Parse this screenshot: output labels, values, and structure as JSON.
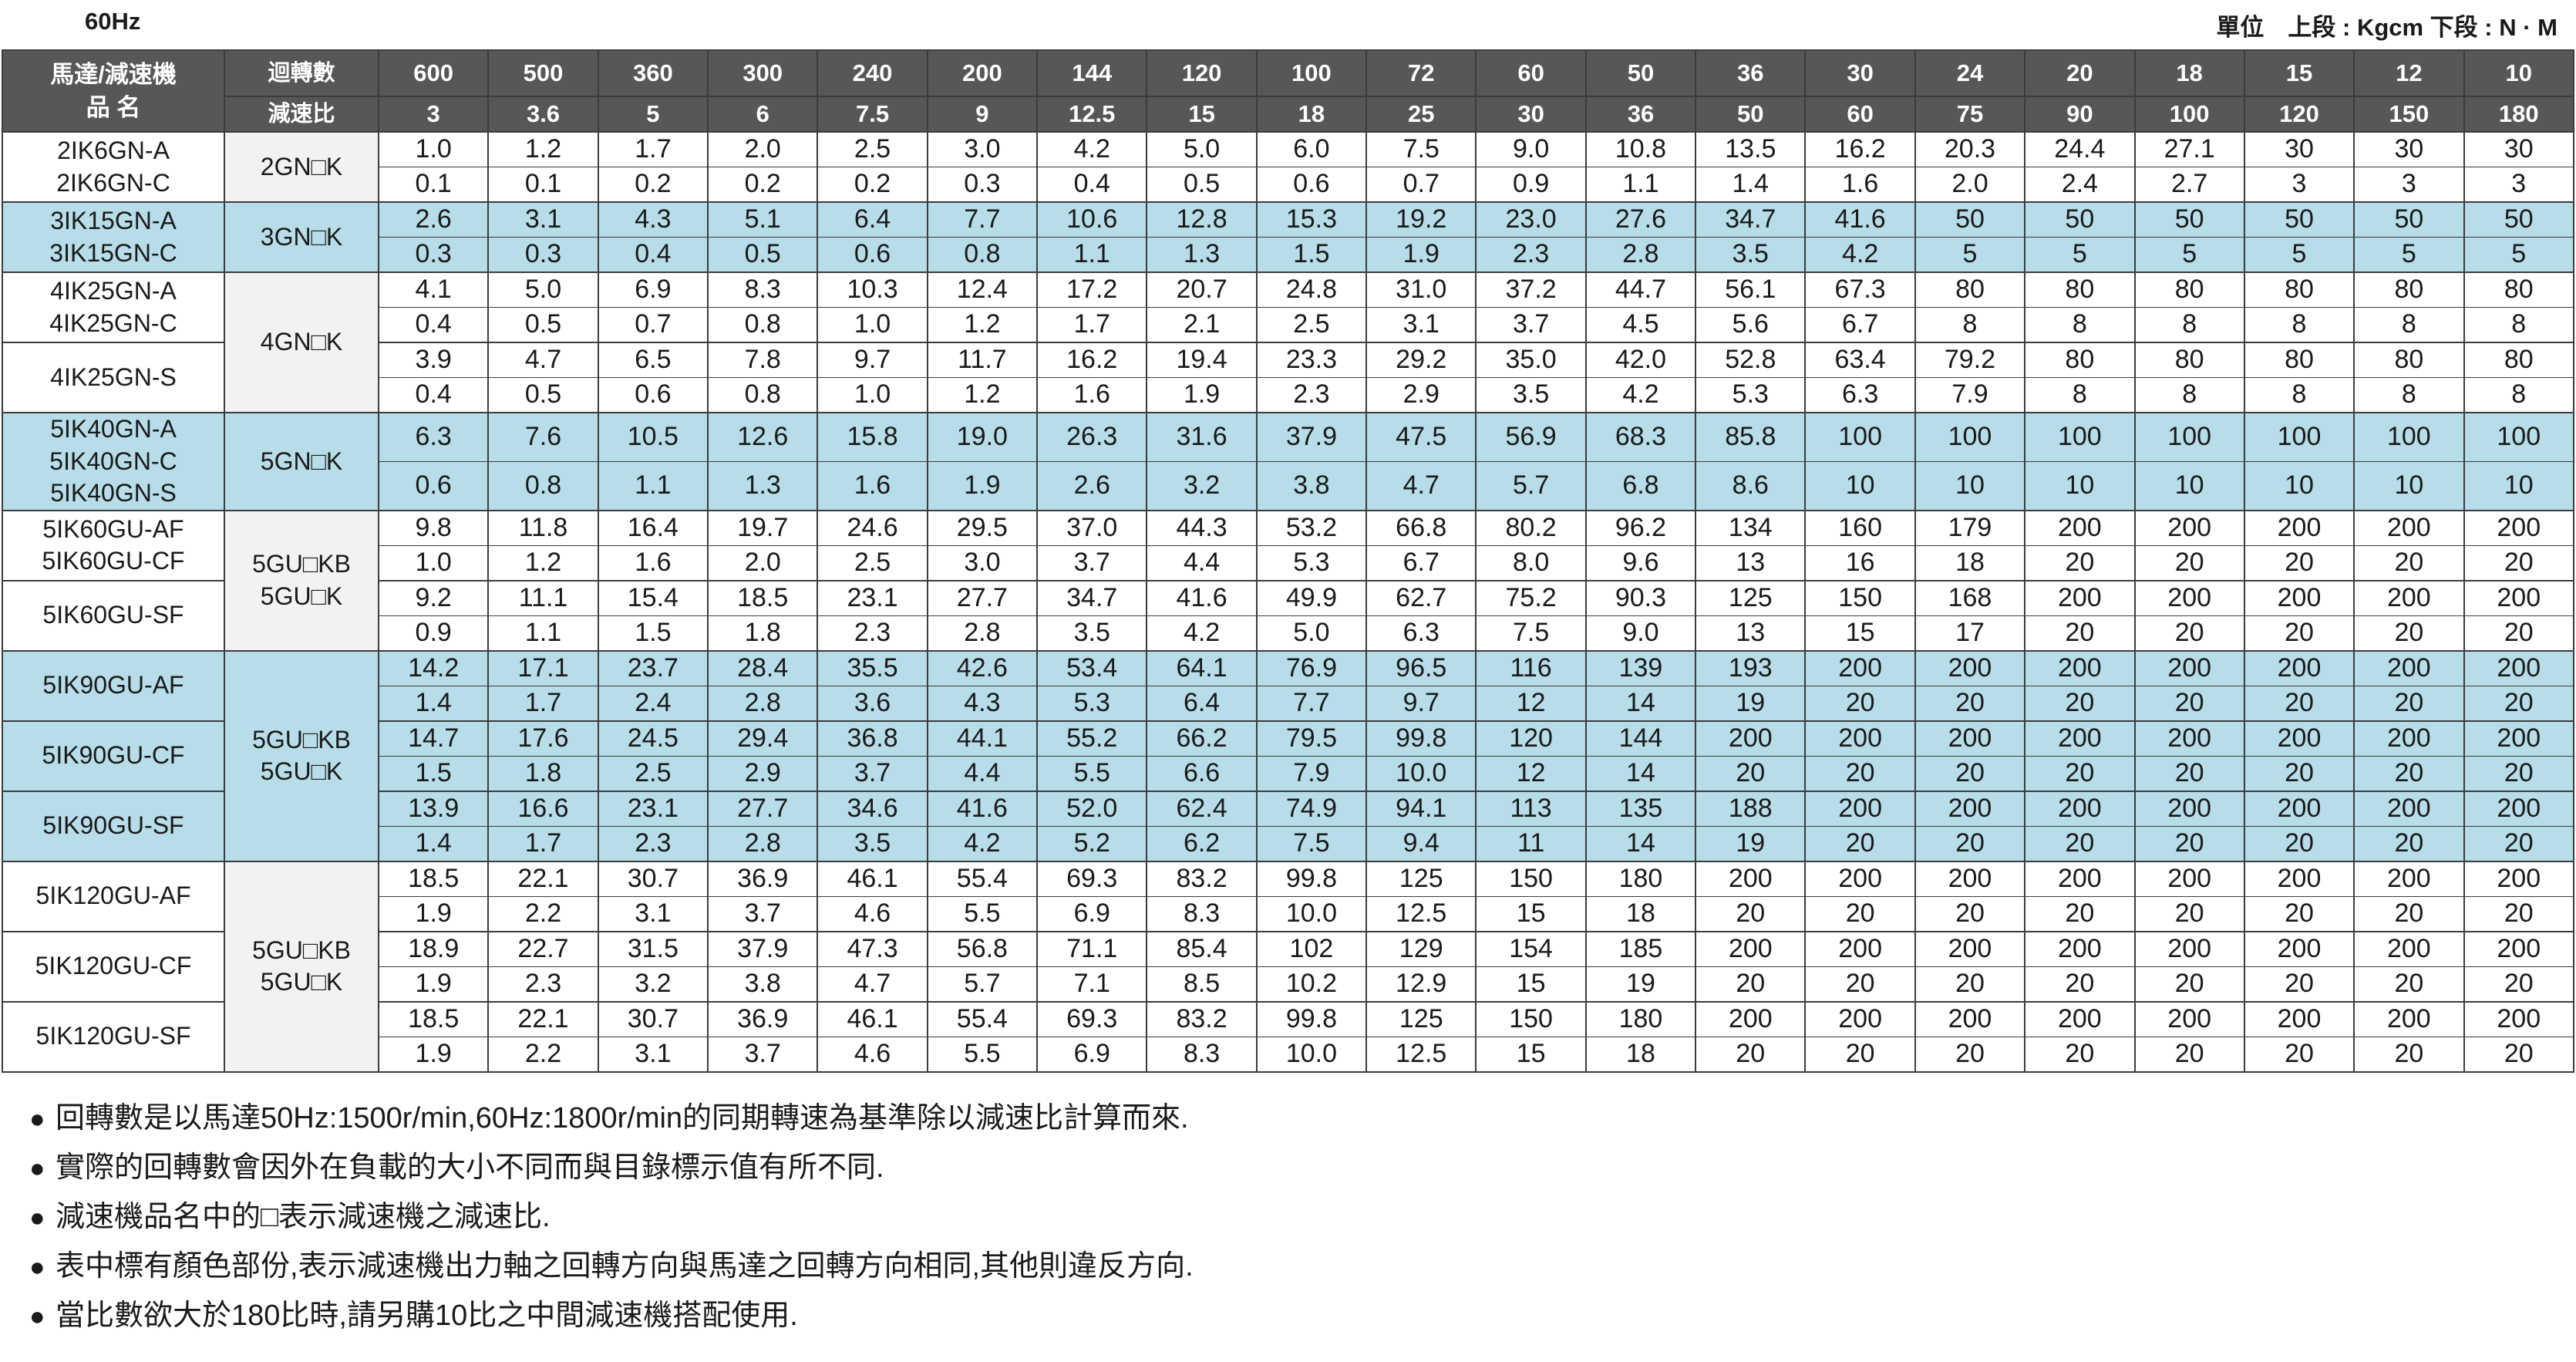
{
  "header": {
    "frequency": "60Hz",
    "units": "單位　上段 : Kgcm  下段 : N · M"
  },
  "table": {
    "col_model": "馬達/減速機",
    "col_model2": "品 名",
    "row_speed_label": "迴轉數",
    "row_ratio_label": "減速比",
    "speeds": [
      "600",
      "500",
      "360",
      "300",
      "240",
      "200",
      "144",
      "120",
      "100",
      "72",
      "60",
      "50",
      "36",
      "30",
      "24",
      "20",
      "18",
      "15",
      "12",
      "10"
    ],
    "ratios": [
      "3",
      "3.6",
      "5",
      "6",
      "7.5",
      "9",
      "12.5",
      "15",
      "18",
      "25",
      "30",
      "36",
      "50",
      "60",
      "75",
      "90",
      "100",
      "120",
      "150",
      "180"
    ],
    "rows": [
      {
        "models": [
          "2IK6GN-A",
          "2IK6GN-C"
        ],
        "gear": "2GN□K",
        "top": [
          "1.0",
          "1.2",
          "1.7",
          "2.0",
          "2.5",
          "3.0",
          "4.2",
          "5.0",
          "6.0",
          "7.5",
          "9.0",
          "10.8",
          "13.5",
          "16.2",
          "20.3",
          "24.4",
          "27.1",
          "30",
          "30",
          "30"
        ],
        "bottom": [
          "0.1",
          "0.1",
          "0.2",
          "0.2",
          "0.2",
          "0.3",
          "0.4",
          "0.5",
          "0.6",
          "0.7",
          "0.9",
          "1.1",
          "1.4",
          "1.6",
          "2.0",
          "2.4",
          "2.7",
          "3",
          "3",
          "3"
        ]
      },
      {
        "models": [
          "3IK15GN-A",
          "3IK15GN-C"
        ],
        "gear": "3GN□K",
        "top": [
          "2.6",
          "3.1",
          "4.3",
          "5.1",
          "6.4",
          "7.7",
          "10.6",
          "12.8",
          "15.3",
          "19.2",
          "23.0",
          "27.6",
          "34.7",
          "41.6",
          "50",
          "50",
          "50",
          "50",
          "50",
          "50"
        ],
        "bottom": [
          "0.3",
          "0.3",
          "0.4",
          "0.5",
          "0.6",
          "0.8",
          "1.1",
          "1.3",
          "1.5",
          "1.9",
          "2.3",
          "2.8",
          "3.5",
          "4.2",
          "5",
          "5",
          "5",
          "5",
          "5",
          "5"
        ]
      },
      {
        "models": [
          "4IK25GN-A",
          "4IK25GN-C"
        ],
        "gear": "4GN□K",
        "top": [
          "4.1",
          "5.0",
          "6.9",
          "8.3",
          "10.3",
          "12.4",
          "17.2",
          "20.7",
          "24.8",
          "31.0",
          "37.2",
          "44.7",
          "56.1",
          "67.3",
          "80",
          "80",
          "80",
          "80",
          "80",
          "80"
        ],
        "bottom": [
          "0.4",
          "0.5",
          "0.7",
          "0.8",
          "1.0",
          "1.2",
          "1.7",
          "2.1",
          "2.5",
          "3.1",
          "3.7",
          "4.5",
          "5.6",
          "6.7",
          "8",
          "8",
          "8",
          "8",
          "8",
          "8"
        ]
      },
      {
        "models": [
          "4IK25GN-S"
        ],
        "top": [
          "3.9",
          "4.7",
          "6.5",
          "7.8",
          "9.7",
          "11.7",
          "16.2",
          "19.4",
          "23.3",
          "29.2",
          "35.0",
          "42.0",
          "52.8",
          "63.4",
          "79.2",
          "80",
          "80",
          "80",
          "80",
          "80"
        ],
        "bottom": [
          "0.4",
          "0.5",
          "0.6",
          "0.8",
          "1.0",
          "1.2",
          "1.6",
          "1.9",
          "2.3",
          "2.9",
          "3.5",
          "4.2",
          "5.3",
          "6.3",
          "7.9",
          "8",
          "8",
          "8",
          "8",
          "8"
        ]
      },
      {
        "models": [
          "5IK40GN-A",
          "5IK40GN-C",
          "5IK40GN-S"
        ],
        "gear": "5GN□K",
        "top": [
          "6.3",
          "7.6",
          "10.5",
          "12.6",
          "15.8",
          "19.0",
          "26.3",
          "31.6",
          "37.9",
          "47.5",
          "56.9",
          "68.3",
          "85.8",
          "100",
          "100",
          "100",
          "100",
          "100",
          "100",
          "100"
        ],
        "bottom": [
          "0.6",
          "0.8",
          "1.1",
          "1.3",
          "1.6",
          "1.9",
          "2.6",
          "3.2",
          "3.8",
          "4.7",
          "5.7",
          "6.8",
          "8.6",
          "10",
          "10",
          "10",
          "10",
          "10",
          "10",
          "10"
        ]
      },
      {
        "models": [
          "5IK60GU-AF",
          "5IK60GU-CF"
        ],
        "gear": [
          "5GU□KB",
          "5GU□K"
        ],
        "top": [
          "9.8",
          "11.8",
          "16.4",
          "19.7",
          "24.6",
          "29.5",
          "37.0",
          "44.3",
          "53.2",
          "66.8",
          "80.2",
          "96.2",
          "134",
          "160",
          "179",
          "200",
          "200",
          "200",
          "200",
          "200"
        ],
        "bottom": [
          "1.0",
          "1.2",
          "1.6",
          "2.0",
          "2.5",
          "3.0",
          "3.7",
          "4.4",
          "5.3",
          "6.7",
          "8.0",
          "9.6",
          "13",
          "16",
          "18",
          "20",
          "20",
          "20",
          "20",
          "20"
        ]
      },
      {
        "models": [
          "5IK60GU-SF"
        ],
        "top": [
          "9.2",
          "11.1",
          "15.4",
          "18.5",
          "23.1",
          "27.7",
          "34.7",
          "41.6",
          "49.9",
          "62.7",
          "75.2",
          "90.3",
          "125",
          "150",
          "168",
          "200",
          "200",
          "200",
          "200",
          "200"
        ],
        "bottom": [
          "0.9",
          "1.1",
          "1.5",
          "1.8",
          "2.3",
          "2.8",
          "3.5",
          "4.2",
          "5.0",
          "6.3",
          "7.5",
          "9.0",
          "13",
          "15",
          "17",
          "20",
          "20",
          "20",
          "20",
          "20"
        ]
      },
      {
        "models": [
          "5IK90GU-AF"
        ],
        "gear": [
          "5GU□KB",
          "5GU□K"
        ],
        "top": [
          "14.2",
          "17.1",
          "23.7",
          "28.4",
          "35.5",
          "42.6",
          "53.4",
          "64.1",
          "76.9",
          "96.5",
          "116",
          "139",
          "193",
          "200",
          "200",
          "200",
          "200",
          "200",
          "200",
          "200"
        ],
        "bottom": [
          "1.4",
          "1.7",
          "2.4",
          "2.8",
          "3.6",
          "4.3",
          "5.3",
          "6.4",
          "7.7",
          "9.7",
          "12",
          "14",
          "19",
          "20",
          "20",
          "20",
          "20",
          "20",
          "20",
          "20"
        ]
      },
      {
        "models": [
          "5IK90GU-CF"
        ],
        "top": [
          "14.7",
          "17.6",
          "24.5",
          "29.4",
          "36.8",
          "44.1",
          "55.2",
          "66.2",
          "79.5",
          "99.8",
          "120",
          "144",
          "200",
          "200",
          "200",
          "200",
          "200",
          "200",
          "200",
          "200"
        ],
        "bottom": [
          "1.5",
          "1.8",
          "2.5",
          "2.9",
          "3.7",
          "4.4",
          "5.5",
          "6.6",
          "7.9",
          "10.0",
          "12",
          "14",
          "20",
          "20",
          "20",
          "20",
          "20",
          "20",
          "20",
          "20"
        ]
      },
      {
        "models": [
          "5IK90GU-SF"
        ],
        "top": [
          "13.9",
          "16.6",
          "23.1",
          "27.7",
          "34.6",
          "41.6",
          "52.0",
          "62.4",
          "74.9",
          "94.1",
          "113",
          "135",
          "188",
          "200",
          "200",
          "200",
          "200",
          "200",
          "200",
          "200"
        ],
        "bottom": [
          "1.4",
          "1.7",
          "2.3",
          "2.8",
          "3.5",
          "4.2",
          "5.2",
          "6.2",
          "7.5",
          "9.4",
          "11",
          "14",
          "19",
          "20",
          "20",
          "20",
          "20",
          "20",
          "20",
          "20"
        ]
      },
      {
        "models": [
          "5IK120GU-AF"
        ],
        "gear": [
          "5GU□KB",
          "5GU□K"
        ],
        "top": [
          "18.5",
          "22.1",
          "30.7",
          "36.9",
          "46.1",
          "55.4",
          "69.3",
          "83.2",
          "99.8",
          "125",
          "150",
          "180",
          "200",
          "200",
          "200",
          "200",
          "200",
          "200",
          "200",
          "200"
        ],
        "bottom": [
          "1.9",
          "2.2",
          "3.1",
          "3.7",
          "4.6",
          "5.5",
          "6.9",
          "8.3",
          "10.0",
          "12.5",
          "15",
          "18",
          "20",
          "20",
          "20",
          "20",
          "20",
          "20",
          "20",
          "20"
        ]
      },
      {
        "models": [
          "5IK120GU-CF"
        ],
        "top": [
          "18.9",
          "22.7",
          "31.5",
          "37.9",
          "47.3",
          "56.8",
          "71.1",
          "85.4",
          "102",
          "129",
          "154",
          "185",
          "200",
          "200",
          "200",
          "200",
          "200",
          "200",
          "200",
          "200"
        ],
        "bottom": [
          "1.9",
          "2.3",
          "3.2",
          "3.8",
          "4.7",
          "5.7",
          "7.1",
          "8.5",
          "10.2",
          "12.9",
          "15",
          "19",
          "20",
          "20",
          "20",
          "20",
          "20",
          "20",
          "20",
          "20"
        ]
      },
      {
        "models": [
          "5IK120GU-SF"
        ],
        "top": [
          "18.5",
          "22.1",
          "30.7",
          "36.9",
          "46.1",
          "55.4",
          "69.3",
          "83.2",
          "99.8",
          "125",
          "150",
          "180",
          "200",
          "200",
          "200",
          "200",
          "200",
          "200",
          "200",
          "200"
        ],
        "bottom": [
          "1.9",
          "2.2",
          "3.1",
          "3.7",
          "4.6",
          "5.5",
          "6.9",
          "8.3",
          "10.0",
          "12.5",
          "15",
          "18",
          "20",
          "20",
          "20",
          "20",
          "20",
          "20",
          "20",
          "20"
        ]
      }
    ]
  },
  "notes": [
    "回轉數是以馬達50Hz:1500r/min,60Hz:1800r/min的同期轉速為基準除以減速比計算而來.",
    "實際的回轉數會因外在負載的大小不同而與目錄標示值有所不同.",
    "減速機品名中的□表示減速機之減速比.",
    "表中標有顏色部份,表示減速機出力軸之回轉方向與馬達之回轉方向相同,其他則違反方向.",
    "當比數欲大於180比時,請另購10比之中間減速機搭配使用."
  ],
  "colors": {
    "header_bg": "#575757",
    "highlight_bg": "#b7dde8",
    "gear_plain_bg": "#f2f2f2"
  }
}
